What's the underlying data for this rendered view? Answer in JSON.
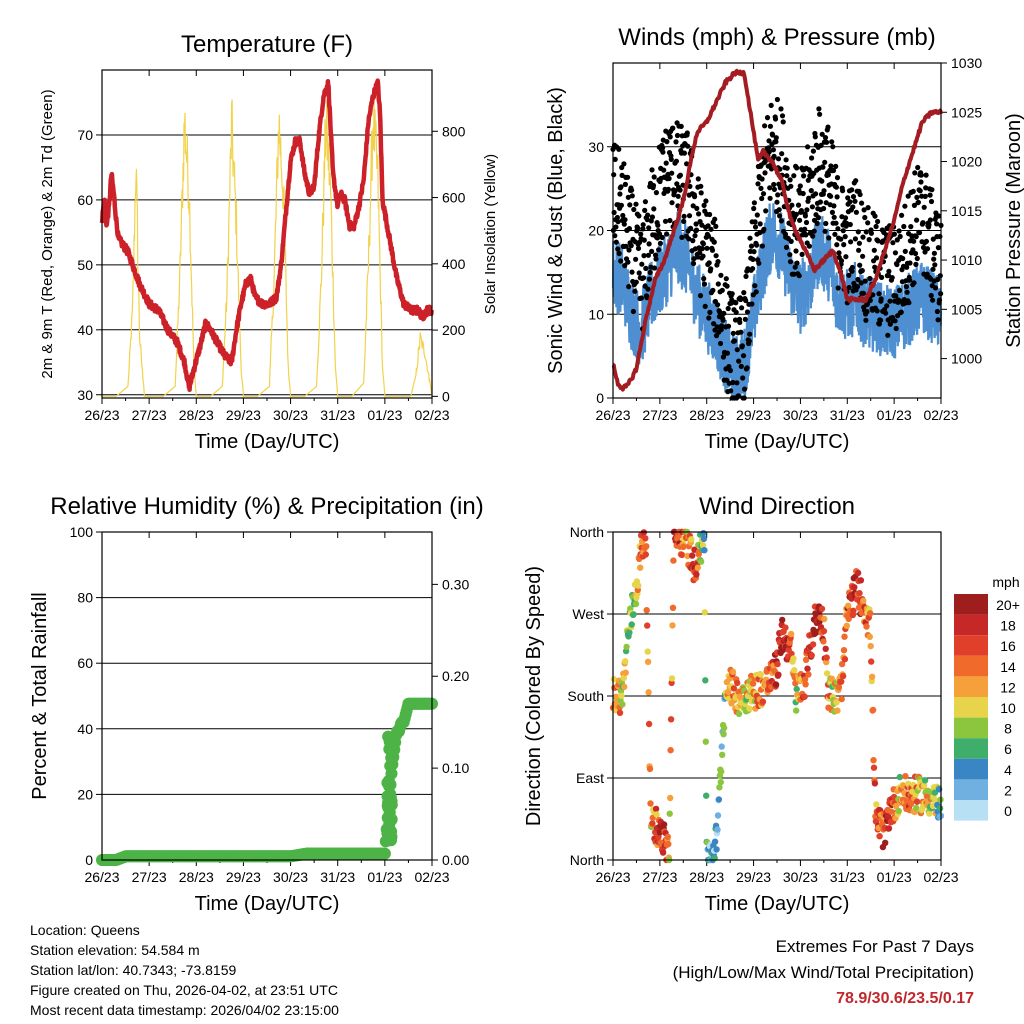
{
  "colors": {
    "temp_2m": "#cc2128",
    "temp_9m": "#f08a24",
    "dewpoint": "#3fae3a",
    "solar": "#f2d24a",
    "wind": "#4d8fd0",
    "gust": "#000000",
    "pressure": "#a31c21",
    "rh_precip": "#4db347",
    "extremes": "#c0282d"
  },
  "chart_data": [
    {
      "type": "line",
      "title": "Temperature (F)",
      "xlabel": "Time (Day/UTC)",
      "ylabel": "2m & 9m T (Red, Orange) & 2m Td (Green)",
      "y2label": "Solar Insolation (Yellow)",
      "xlim": [
        0,
        7
      ],
      "xticks": [
        "26/23",
        "27/23",
        "28/23",
        "29/23",
        "30/23",
        "31/23",
        "01/23",
        "02/23"
      ],
      "ylim": [
        29.5,
        80
      ],
      "yticks": [
        30,
        40,
        50,
        60,
        70
      ],
      "y2lim": [
        -5,
        985
      ],
      "y2ticks": [
        0,
        200,
        400,
        600,
        800
      ],
      "grid": true,
      "series": [
        {
          "name": "2m & 9m Temperature",
          "color_key": "temp_2m",
          "x": [
            0,
            0.05,
            0.1,
            0.15,
            0.2,
            0.25,
            0.3,
            0.35,
            0.45,
            0.55,
            0.65,
            0.8,
            1.0,
            1.2,
            1.4,
            1.6,
            1.75,
            1.85,
            1.95,
            2.1,
            2.2,
            2.3,
            2.45,
            2.6,
            2.75,
            2.85,
            2.95,
            3.05,
            3.15,
            3.25,
            3.4,
            3.55,
            3.7,
            3.8,
            3.9,
            4.0,
            4.1,
            4.2,
            4.3,
            4.4,
            4.5,
            4.6,
            4.7,
            4.8,
            4.9,
            5.0,
            5.05,
            5.15,
            5.25,
            5.35,
            5.45,
            5.55,
            5.65,
            5.75,
            5.85,
            5.9,
            5.95,
            6.05,
            6.15,
            6.25,
            6.4,
            6.55,
            6.7,
            6.8,
            6.9,
            7.0
          ],
          "y": [
            57,
            60,
            56,
            59,
            64,
            61,
            57,
            54,
            53,
            52,
            50,
            47,
            44,
            43,
            40,
            38,
            35,
            31,
            34,
            38,
            41,
            40,
            38,
            36,
            35,
            40,
            44,
            47,
            48,
            45,
            44,
            44,
            45,
            50,
            58,
            66,
            69,
            69,
            64,
            61,
            62,
            70,
            76,
            78,
            64,
            59,
            61,
            60,
            56,
            56,
            59,
            63,
            72,
            76,
            78,
            73,
            60,
            56,
            52,
            48,
            44,
            43,
            43,
            42,
            43,
            43
          ]
        },
        {
          "name": "Solar Insolation",
          "color_key": "solar",
          "axis": "y2",
          "x": [
            0,
            0.3,
            0.55,
            0.65,
            0.72,
            0.8,
            0.9,
            1.0,
            1.3,
            1.55,
            1.65,
            1.75,
            1.85,
            1.95,
            2.0,
            2.3,
            2.55,
            2.65,
            2.75,
            2.85,
            2.95,
            3.0,
            3.3,
            3.55,
            3.65,
            3.75,
            3.85,
            3.95,
            4.0,
            4.3,
            4.55,
            4.65,
            4.75,
            4.85,
            4.95,
            5.0,
            5.3,
            5.55,
            5.65,
            5.75,
            5.85,
            5.95,
            6.0,
            6.3,
            6.55,
            6.65,
            6.75,
            6.85,
            6.95,
            7.0
          ],
          "y": [
            0,
            0,
            30,
            300,
            800,
            200,
            0,
            0,
            0,
            30,
            400,
            950,
            700,
            100,
            0,
            0,
            30,
            350,
            930,
            600,
            100,
            0,
            0,
            30,
            400,
            950,
            700,
            100,
            0,
            0,
            30,
            400,
            950,
            700,
            100,
            0,
            0,
            40,
            450,
            960,
            750,
            100,
            0,
            0,
            0,
            60,
            200,
            150,
            50,
            0
          ]
        }
      ]
    },
    {
      "type": "scatter",
      "title": "Winds (mph) & Pressure (mb)",
      "xlabel": "Time (Day/UTC)",
      "ylabel": "Sonic Wind & Gust (Blue, Black)",
      "y2label": "Station Pressure (Maroon)",
      "xlim": [
        0,
        7
      ],
      "xticks": [
        "26/23",
        "27/23",
        "28/23",
        "29/23",
        "30/23",
        "31/23",
        "01/23",
        "02/23"
      ],
      "ylim": [
        0,
        40
      ],
      "yticks": [
        0,
        10,
        20,
        30
      ],
      "y2lim": [
        996,
        1030
      ],
      "y2ticks": [
        1000,
        1005,
        1010,
        1015,
        1020,
        1025,
        1030
      ],
      "grid": true,
      "series": [
        {
          "name": "Sonic Wind",
          "color_key": "wind",
          "x": [
            0,
            0.2,
            0.4,
            0.6,
            0.8,
            1.0,
            1.2,
            1.4,
            1.6,
            1.8,
            2.0,
            2.2,
            2.4,
            2.6,
            2.8,
            3.0,
            3.2,
            3.4,
            3.6,
            3.8,
            4.0,
            4.2,
            4.4,
            4.6,
            4.8,
            5.0,
            5.2,
            5.4,
            5.6,
            5.8,
            6.0,
            6.2,
            6.4,
            6.6,
            6.8,
            7.0
          ],
          "y": [
            15,
            14,
            10,
            8,
            12,
            14,
            16,
            18,
            16,
            12,
            10,
            8,
            5,
            3,
            4,
            10,
            16,
            20,
            18,
            14,
            12,
            14,
            18,
            16,
            12,
            11,
            12,
            10,
            10,
            9,
            9,
            10,
            11,
            12,
            11,
            10
          ]
        },
        {
          "name": "Gust",
          "color_key": "gust",
          "x": [
            0,
            0.2,
            0.4,
            0.6,
            0.8,
            1.0,
            1.2,
            1.4,
            1.6,
            1.8,
            2.0,
            2.2,
            2.4,
            2.6,
            2.8,
            3.0,
            3.2,
            3.4,
            3.6,
            3.8,
            4.0,
            4.2,
            4.4,
            4.6,
            4.8,
            5.0,
            5.2,
            5.4,
            5.6,
            5.8,
            6.0,
            6.2,
            6.4,
            6.6,
            6.8,
            7.0
          ],
          "y": [
            24,
            22,
            18,
            14,
            20,
            24,
            27,
            26,
            25,
            20,
            17,
            14,
            8,
            5,
            6,
            16,
            25,
            30,
            28,
            22,
            20,
            24,
            28,
            26,
            20,
            18,
            20,
            16,
            15,
            14,
            14,
            16,
            20,
            22,
            18,
            15
          ]
        },
        {
          "name": "Station Pressure",
          "color_key": "pressure",
          "axis": "y2",
          "x": [
            0,
            0.1,
            0.2,
            0.3,
            0.4,
            0.5,
            0.7,
            0.9,
            1.1,
            1.3,
            1.5,
            1.7,
            1.8,
            2.0,
            2.2,
            2.4,
            2.6,
            2.8,
            2.9,
            3.0,
            3.1,
            3.2,
            3.4,
            3.6,
            3.8,
            4.0,
            4.2,
            4.3,
            4.5,
            4.7,
            4.9,
            5.0,
            5.2,
            5.4,
            5.6,
            5.8,
            6.0,
            6.2,
            6.4,
            6.6,
            6.8,
            7.0
          ],
          "y": [
            999.5,
            997.5,
            997,
            997.2,
            998,
            999,
            1004,
            1008,
            1010,
            1013,
            1016,
            1021,
            1023,
            1024,
            1026,
            1028,
            1029,
            1029,
            1026,
            1023,
            1020,
            1021,
            1020,
            1018,
            1014,
            1012,
            1010,
            1009,
            1010,
            1011,
            1008,
            1006,
            1006,
            1006,
            1008,
            1011,
            1014,
            1018,
            1021,
            1024,
            1025,
            1025
          ]
        }
      ]
    },
    {
      "type": "scatter",
      "title": "Relative Humidity (%) & Precipitation (in)",
      "xlabel": "Time (Day/UTC)",
      "ylabel": "Percent & Total Rainfall",
      "xlim": [
        0,
        7
      ],
      "xticks": [
        "26/23",
        "27/23",
        "28/23",
        "29/23",
        "30/23",
        "31/23",
        "01/23",
        "02/23"
      ],
      "ylim": [
        0,
        100
      ],
      "yticks": [
        0,
        20,
        40,
        60,
        80,
        100
      ],
      "y2lim": [
        0,
        0.357
      ],
      "y2ticks": [
        "0.00",
        "0.10",
        "0.20",
        "0.30"
      ],
      "grid": true,
      "series": [
        {
          "name": "Total Precipitation",
          "color_key": "rh_precip",
          "x": [
            0,
            0.3,
            0.5,
            1.0,
            2.0,
            3.0,
            4.0,
            4.35,
            4.5,
            5.0,
            5.5,
            6.0,
            6.05,
            6.1,
            6.15,
            6.2,
            6.25,
            6.3,
            6.35,
            6.4,
            6.45,
            6.5,
            6.6,
            6.8,
            7.0
          ],
          "y": [
            0.0,
            0.0,
            0.004,
            0.004,
            0.004,
            0.004,
            0.004,
            0.007,
            0.007,
            0.007,
            0.007,
            0.007,
            0.04,
            0.07,
            0.1,
            0.12,
            0.14,
            0.14,
            0.15,
            0.15,
            0.16,
            0.17,
            0.17,
            0.17,
            0.17
          ]
        }
      ]
    },
    {
      "type": "scatter",
      "title": "Wind Direction",
      "xlabel": "Time (Day/UTC)",
      "ylabel": "Direction (Colored By Speed)",
      "xlim": [
        0,
        7
      ],
      "xticks": [
        "26/23",
        "27/23",
        "28/23",
        "29/23",
        "30/23",
        "31/23",
        "01/23",
        "02/23"
      ],
      "ylim": [
        0,
        360
      ],
      "yticks": [
        "North",
        "East",
        "South",
        "West",
        "North"
      ],
      "grid": true,
      "colorbar": {
        "title": "mph",
        "labels": [
          "20+",
          "18",
          "16",
          "14",
          "12",
          "10",
          "8",
          "6",
          "4",
          "2",
          "0"
        ],
        "colors": [
          "#9e1e1e",
          "#c62828",
          "#e0402a",
          "#f06a2c",
          "#f5a03a",
          "#e8d44a",
          "#8cc63f",
          "#3fae6a",
          "#3a86c4",
          "#6fb0e0",
          "#b8e0f5"
        ]
      },
      "series": [
        {
          "name": "Direction",
          "x": [
            0.0,
            0.1,
            0.2,
            0.3,
            0.4,
            0.5,
            0.55,
            0.6,
            0.65,
            0.7,
            0.8,
            0.9,
            1.0,
            1.1,
            1.15,
            1.2,
            1.3,
            1.4,
            1.5,
            1.6,
            1.7,
            1.75,
            1.8,
            1.85,
            1.9,
            1.95,
            2.0,
            2.1,
            2.2,
            2.25,
            2.3,
            2.35,
            2.4,
            2.45,
            2.5,
            2.6,
            2.7,
            2.8,
            3.0,
            3.2,
            3.4,
            3.5,
            3.6,
            3.7,
            3.8,
            3.9,
            4.0,
            4.1,
            4.3,
            4.4,
            4.5,
            4.6,
            4.7,
            4.8,
            4.9,
            5.0,
            5.2,
            5.4,
            5.5,
            5.6,
            5.8,
            5.9,
            6.0,
            6.05,
            6.1,
            6.15,
            6.3,
            6.5,
            6.7,
            6.9,
            7.0
          ],
          "y": [
            180,
            185,
            178,
            240,
            270,
            300,
            320,
            340,
            350,
            355,
            50,
            40,
            30,
            20,
            15,
            10,
            355,
            350,
            355,
            345,
            330,
            320,
            340,
            335,
            345,
            355,
            0,
            10,
            20,
            50,
            100,
            150,
            180,
            200,
            190,
            185,
            178,
            182,
            185,
            190,
            200,
            210,
            250,
            240,
            230,
            180,
            190,
            200,
            260,
            270,
            255,
            185,
            180,
            178,
            200,
            270,
            300,
            275,
            250,
            45,
            30,
            55,
            60,
            68,
            72,
            75,
            70,
            72,
            70,
            65,
            55
          ],
          "speeds": [
            12,
            14,
            10,
            8,
            9,
            10,
            12,
            14,
            16,
            18,
            10,
            14,
            16,
            18,
            14,
            10,
            16,
            18,
            14,
            12,
            16,
            18,
            14,
            10,
            8,
            6,
            5,
            3,
            2,
            4,
            6,
            4,
            8,
            10,
            12,
            14,
            12,
            10,
            12,
            14,
            16,
            18,
            20,
            18,
            14,
            10,
            12,
            14,
            20,
            18,
            16,
            12,
            10,
            12,
            14,
            16,
            18,
            14,
            12,
            14,
            16,
            18,
            14,
            12,
            10,
            12,
            14,
            12,
            10,
            8,
            6
          ]
        }
      ]
    }
  ],
  "info": {
    "location": "Location: Queens",
    "elevation": "Station elevation: 54.584 m",
    "latlon": "Station lat/lon: 40.7343; -73.8159",
    "created": "Figure created on Thu, 2026-04-02, at 23:51 UTC",
    "timestamp": "Most recent data timestamp: 2026/04/02 23:15:00"
  },
  "extremes": {
    "title": "Extremes For Past 7 Days",
    "subtitle": "(High/Low/Max Wind/Total Precipitation)",
    "values": "78.9/30.6/23.5/0.17"
  }
}
